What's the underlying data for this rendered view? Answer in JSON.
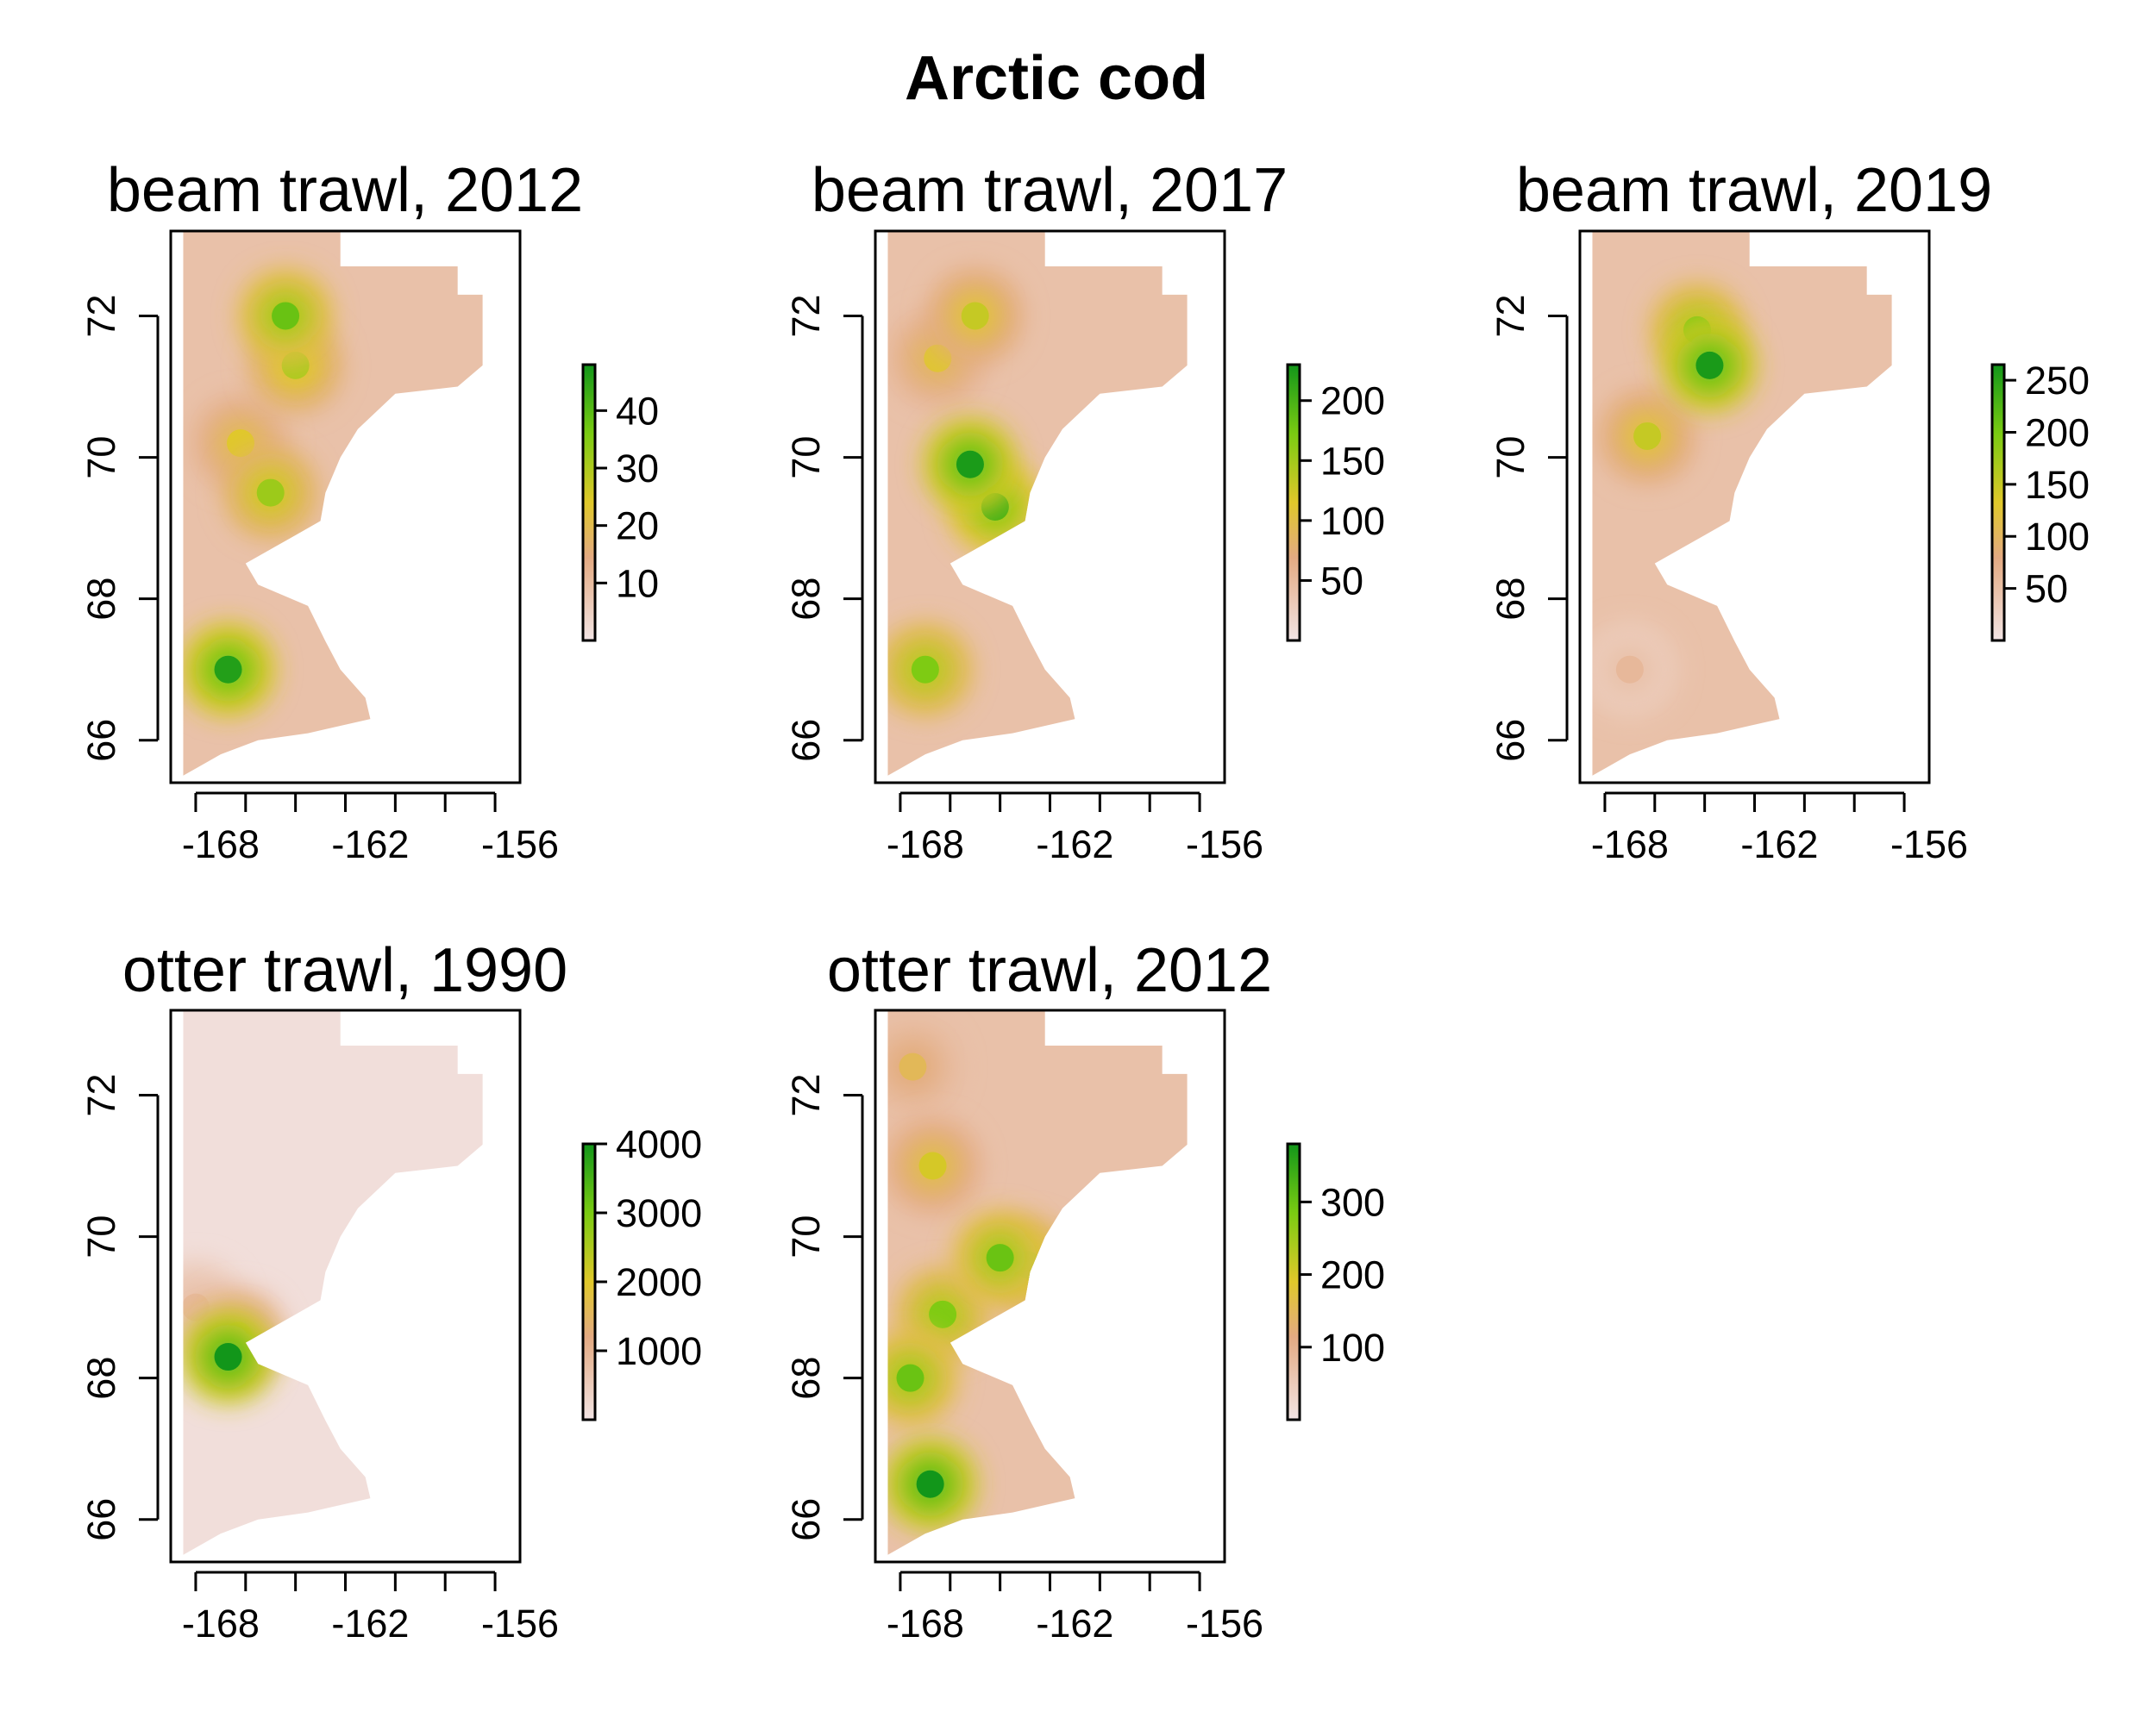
{
  "figure": {
    "title": "Arctic cod",
    "colors": {
      "scale_low": "#f2e4e4",
      "scale_mid_low": "#e3aa82",
      "scale_mid": "#e0c82a",
      "scale_mid_high": "#7acb12",
      "scale_high": "#12961a",
      "frame": "#000000"
    }
  },
  "chart_data": [
    {
      "type": "heatmap",
      "title": "beam trawl, 2012",
      "x_ticks": [
        -168,
        -162,
        -156
      ],
      "y_ticks": [
        66,
        68,
        70,
        72
      ],
      "xlim": [
        -170,
        -156
      ],
      "ylim": [
        65.4,
        73.2
      ],
      "colorbar_ticks": [
        10,
        20,
        30,
        40
      ],
      "colorbar_range": [
        0,
        48
      ],
      "hotspots": [
        {
          "lon": -167.7,
          "lat": 67.0,
          "value": 46
        },
        {
          "lon": -165.4,
          "lat": 72.0,
          "value": 38
        },
        {
          "lon": -165.0,
          "lat": 71.3,
          "value": 30
        },
        {
          "lon": -166.0,
          "lat": 69.5,
          "value": 32
        },
        {
          "lon": -167.2,
          "lat": 70.2,
          "value": 24
        }
      ]
    },
    {
      "type": "heatmap",
      "title": "beam trawl, 2017",
      "x_ticks": [
        -168,
        -162,
        -156
      ],
      "y_ticks": [
        66,
        68,
        70,
        72
      ],
      "xlim": [
        -170,
        -156
      ],
      "ylim": [
        65.4,
        73.2
      ],
      "colorbar_ticks": [
        50,
        100,
        150,
        200
      ],
      "colorbar_range": [
        0,
        230
      ],
      "hotspots": [
        {
          "lon": -166.2,
          "lat": 69.9,
          "value": 225
        },
        {
          "lon": -165.2,
          "lat": 69.3,
          "value": 200
        },
        {
          "lon": -166.0,
          "lat": 72.0,
          "value": 130
        },
        {
          "lon": -168.0,
          "lat": 67.0,
          "value": 170
        },
        {
          "lon": -167.5,
          "lat": 71.4,
          "value": 110
        }
      ]
    },
    {
      "type": "heatmap",
      "title": "beam trawl, 2019",
      "x_ticks": [
        -168,
        -162,
        -156
      ],
      "y_ticks": [
        66,
        68,
        70,
        72
      ],
      "xlim": [
        -170,
        -156
      ],
      "ylim": [
        65.4,
        73.2
      ],
      "colorbar_ticks": [
        50,
        100,
        150,
        200,
        250
      ],
      "colorbar_range": [
        0,
        265
      ],
      "hotspots": [
        {
          "lon": -164.8,
          "lat": 71.3,
          "value": 260
        },
        {
          "lon": -165.3,
          "lat": 71.8,
          "value": 200
        },
        {
          "lon": -167.3,
          "lat": 70.3,
          "value": 150
        },
        {
          "lon": -168.0,
          "lat": 67.0,
          "value": 60
        }
      ]
    },
    {
      "type": "heatmap",
      "title": "otter trawl, 1990",
      "x_ticks": [
        -168,
        -162,
        -156
      ],
      "y_ticks": [
        66,
        68,
        70,
        72
      ],
      "xlim": [
        -170,
        -156
      ],
      "ylim": [
        65.4,
        73.2
      ],
      "colorbar_ticks": [
        1000,
        2000,
        3000,
        4000
      ],
      "colorbar_range": [
        0,
        4000
      ],
      "hotspots": [
        {
          "lon": -167.7,
          "lat": 68.3,
          "value": 4000
        },
        {
          "lon": -167.3,
          "lat": 68.6,
          "value": 1800
        },
        {
          "lon": -169.0,
          "lat": 69.0,
          "value": 900
        }
      ]
    },
    {
      "type": "heatmap",
      "title": "otter trawl, 2012",
      "x_ticks": [
        -168,
        -162,
        -156
      ],
      "y_ticks": [
        66,
        68,
        70,
        72
      ],
      "xlim": [
        -170,
        -156
      ],
      "ylim": [
        65.4,
        73.2
      ],
      "colorbar_ticks": [
        100,
        200,
        300
      ],
      "colorbar_range": [
        0,
        380
      ],
      "hotspots": [
        {
          "lon": -167.8,
          "lat": 66.5,
          "value": 380
        },
        {
          "lon": -168.6,
          "lat": 68.0,
          "value": 300
        },
        {
          "lon": -167.3,
          "lat": 68.9,
          "value": 280
        },
        {
          "lon": -165.0,
          "lat": 69.7,
          "value": 300
        },
        {
          "lon": -163.9,
          "lat": 69.6,
          "value": 250
        },
        {
          "lon": -167.7,
          "lat": 71.0,
          "value": 200
        },
        {
          "lon": -168.5,
          "lat": 72.4,
          "value": 150
        }
      ]
    }
  ]
}
